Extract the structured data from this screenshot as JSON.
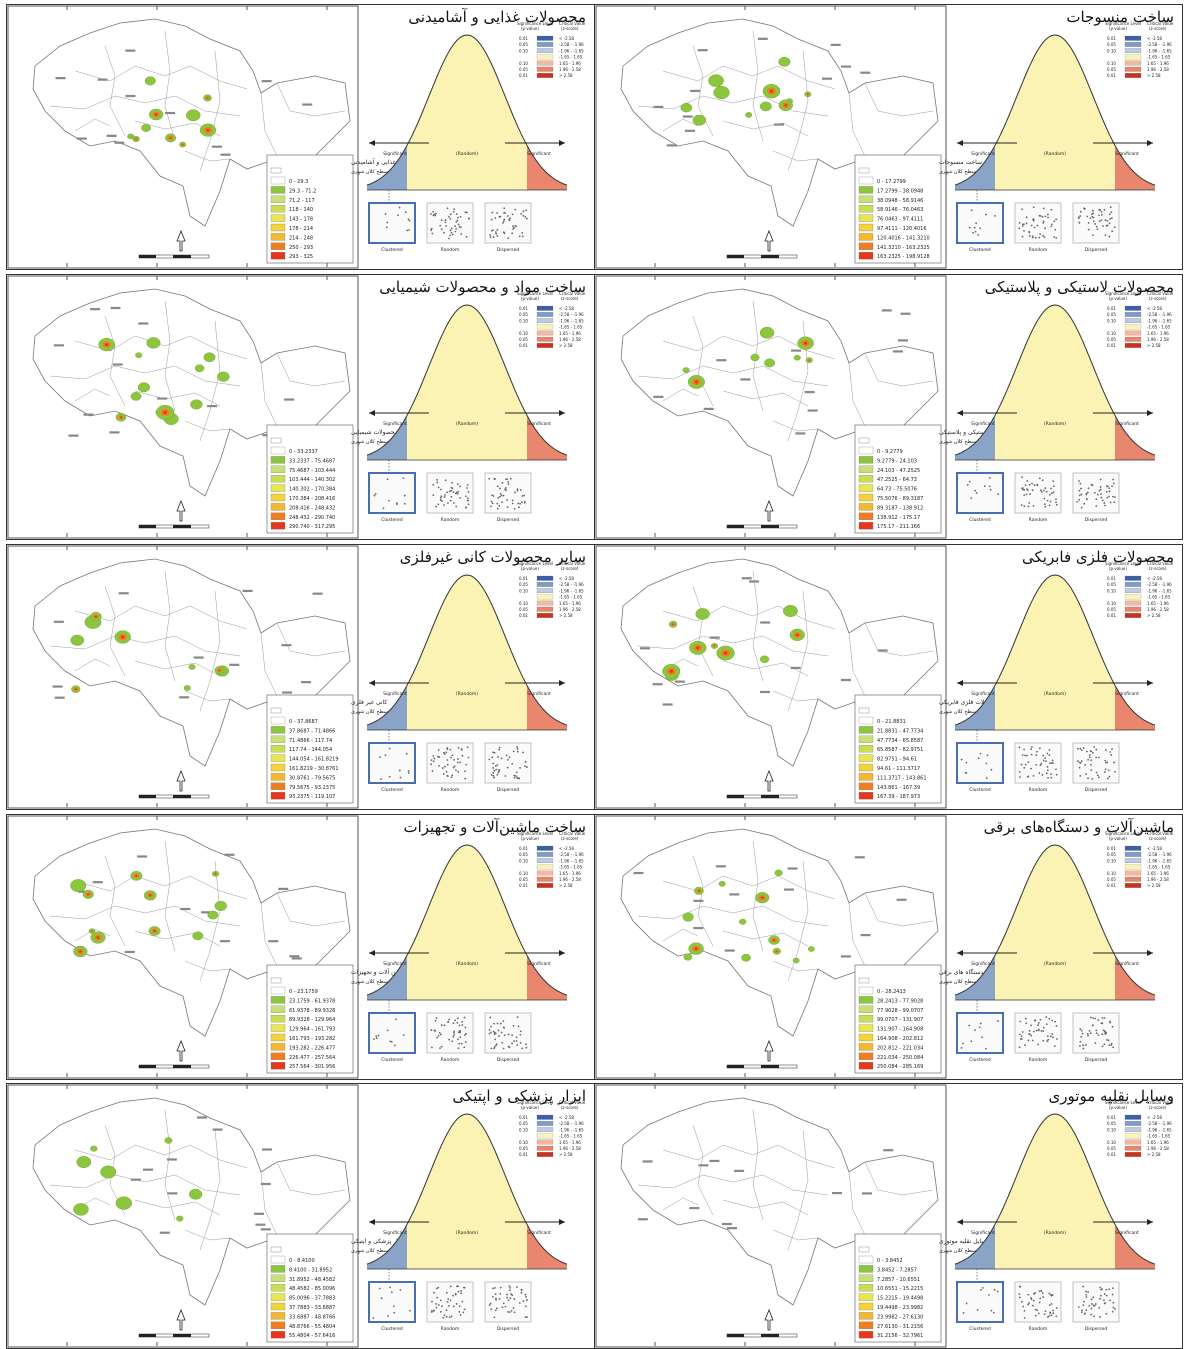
{
  "colors": {
    "hot": [
      "#f5f0c8",
      "#c8e07a",
      "#8cc63f",
      "#d4e84a",
      "#f2e24a",
      "#f5b731",
      "#f07d1f",
      "#e8361e"
    ],
    "blue_tail": "#8aa4c8",
    "red_tail": "#e8866e",
    "curve_fill": "#fbf3b3",
    "frame": "#4a6fb0"
  },
  "curve_labels": {
    "significant": "Significant",
    "random": "(Random)",
    "clustered": "Clustered",
    "random_box": "Random",
    "dispersed": "Dispersed",
    "significance_level": "Significance Level",
    "p_value": "(p-value)",
    "critical_value": "Critical Value",
    "z_score": "(z-score)"
  },
  "legend_rows": [
    {
      "p": "0.01",
      "z": "< -2.58"
    },
    {
      "p": "0.05",
      "z": "-2.58 - -1.96"
    },
    {
      "p": "0.10",
      "z": "-1.96 - -1.65"
    },
    {
      "p": "",
      "z": "-1.65 - 1.65"
    },
    {
      "p": "0.10",
      "z": "1.65 - 1.96"
    },
    {
      "p": "0.05",
      "z": "1.96 - 2.58"
    },
    {
      "p": "0.01",
      "z": "> 2.58"
    }
  ],
  "map_legend_header": "سطح کلان شهری",
  "panels": [
    {
      "title": "محصولات غذایی و آشامیدنی",
      "legend_title": "محصولات غذایی و آشامیدنی",
      "classes": [
        "0 - 29.3",
        "29.3 - 71.2",
        "71.2 - 117",
        "118 - 140",
        "143 - 178",
        "178 - 214",
        "214 - 248",
        "250 - 293",
        "293 - 325"
      ]
    },
    {
      "title": "ساخت منسوجات",
      "legend_title": "ساخت منسوجات",
      "classes": [
        "0 - 17.2799",
        "17.2799 - 38.0948",
        "38.0948 - 58.9146",
        "58.9146 - 76.0463",
        "76.0463 - 97.4111",
        "97.4111 - 120.4016",
        "120.4016 - 141.3210",
        "141.3210 - 163.2325",
        "163.2325 - 198.9128"
      ]
    },
    {
      "title": "ساخت مواد و محصولات شیمیایی",
      "legend_title": "مواد و محصولات شیمیایی",
      "classes": [
        "0 - 33.2337",
        "33.2337 - 75.4687",
        "75.4687 - 103.444",
        "103.444 - 140.302",
        "140.302 - 170.384",
        "170.384 - 208.416",
        "208.416 - 248.432",
        "248.432 - 290.740",
        "290.740 - 317.295"
      ]
    },
    {
      "title": "محصولات لاستیکی و پلاستیکی",
      "legend_title": "محصولات لاستیکی و پلاستیکی",
      "classes": [
        "0 - 9.2779",
        "9.2779 - 24.103",
        "24.103 - 47.2525",
        "47.2525 - 64.73",
        "64.73 - 75.5076",
        "75.5076 - 89.3187",
        "89.3187 - 138.912",
        "138.912 - 175.17",
        "175.17 - 211.166"
      ]
    },
    {
      "title": "سایر محصولات کانی غیرفلزی",
      "legend_title": "کانی غیر فلزی",
      "classes": [
        "0 - 37.8687",
        "37.8687 - 71.4866",
        "71.4866 - 117.74",
        "117.74 - 144.054",
        "144.054 - 161.8219",
        "161.8219 - 30.8761",
        "30.8761 - 79.5675",
        "79.5675 - 93.2375",
        "93.2375 - 119.107"
      ]
    },
    {
      "title": "محصولات فلزی فابریکی",
      "legend_title": "محصولات فلزی فابریکی",
      "classes": [
        "0 - 21.8831",
        "21.8831 - 47.7734",
        "47.7734 - 65.8587",
        "65.8587 - 82.9751",
        "82.9751 - 94.61",
        "94.61 - 111.3717",
        "111.3717 - 143.861",
        "143.861 - 167.39",
        "167.39 - 187.973"
      ]
    },
    {
      "title": "ساخت ماشین‌آلات و تجهیزات",
      "legend_title": "ماشین آلات و تجهیزات",
      "classes": [
        "0 - 23.1759",
        "23.1759 - 61.9378",
        "61.9378 - 89.9328",
        "89.9328 - 129.964",
        "129.964 - 161.793",
        "161.793 - 193.282",
        "193.282 - 226.477",
        "226.477 - 257.564",
        "257.564 - 301.956"
      ]
    },
    {
      "title": "ماشین‌آلات و دستگاه‌های برقی",
      "legend_title": "دستگاه های برقی",
      "classes": [
        "0 - 28.2413",
        "28.2413 - 77.9028",
        "77.9028 - 99.0707",
        "99.0707 - 131.907",
        "131.907 - 164.908",
        "164.908 - 202.812",
        "202.812 - 221.034",
        "221.034 - 250.084",
        "250.084 - 285.169"
      ]
    },
    {
      "title": "ابزار پزشکی و اپتیکی",
      "legend_title": "ابزار پزشکی و اپتیکی",
      "classes": [
        "0 - 8.4100",
        "8.4100 - 31.8952",
        "31.8952 - 48.4582",
        "48.4582 - 85.0096",
        "85.0096 - 37.7883",
        "37.7883 - 33.6887",
        "33.6887 - 48.8766",
        "48.8766 - 55.4804",
        "55.4804 - 57.6416"
      ]
    },
    {
      "title": "وسایل نقلیه موتوری",
      "legend_title": "وسایل نقلیه موتوری",
      "classes": [
        "0 - 3.8452",
        "3.8452 - 7.2857",
        "7.2857 - 10.6551",
        "10.6551 - 15.2215",
        "15.2215 - 19.4498",
        "19.4498 - 23.9982",
        "23.9982 - 27.6130",
        "27.6130 - 31.2156",
        "31.2156 - 32.7961"
      ]
    }
  ]
}
